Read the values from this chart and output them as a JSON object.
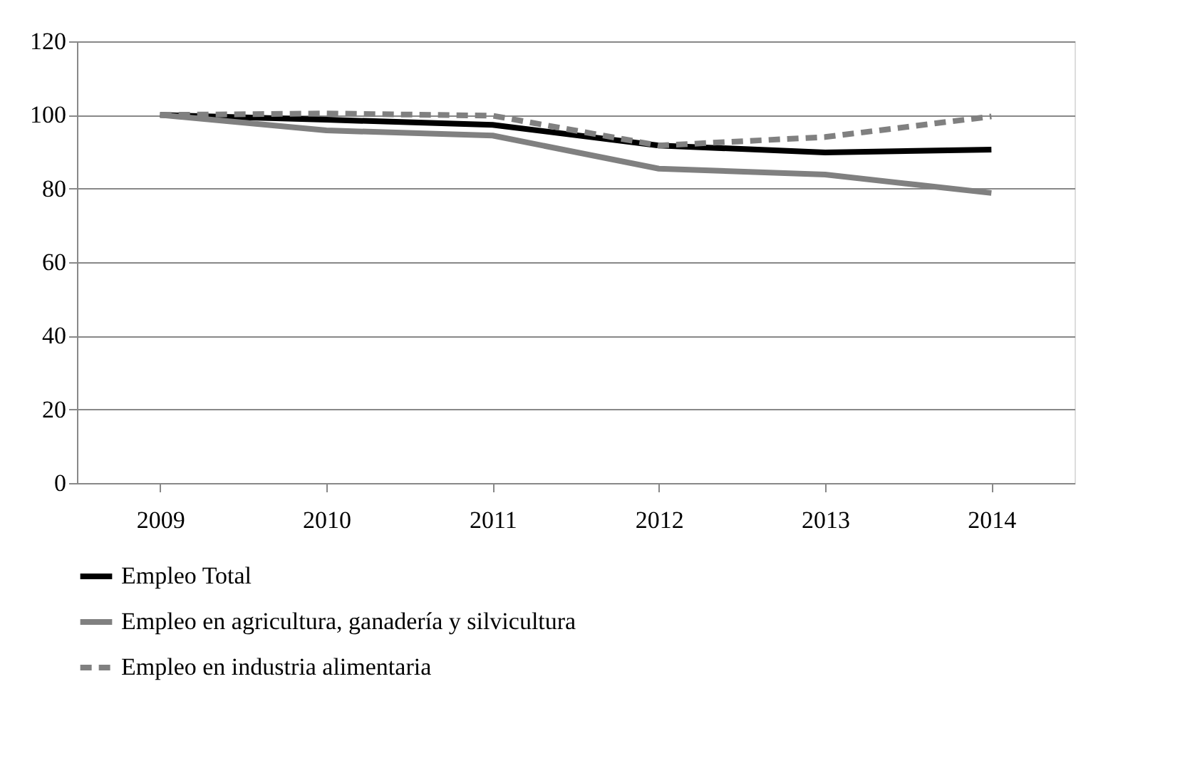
{
  "chart_data": {
    "type": "line",
    "categories": [
      "2009",
      "2010",
      "2011",
      "2012",
      "2013",
      "2014"
    ],
    "series": [
      {
        "name": "Empleo Total",
        "color": "#000000",
        "line_style": "solid",
        "values": [
          100,
          98.7,
          97.3,
          91.7,
          89.8,
          90.6
        ]
      },
      {
        "name": "Empleo en agricultura, ganadería y silvicultura",
        "color": "#808080",
        "line_style": "solid",
        "values": [
          100,
          95.8,
          94.4,
          85.4,
          83.8,
          78.8
        ]
      },
      {
        "name": "Empleo en industria alimentaria",
        "color": "#808080",
        "line_style": "dashed",
        "values": [
          100,
          100.4,
          99.8,
          91.7,
          94.0,
          99.6
        ]
      }
    ],
    "ylim": [
      0,
      120
    ],
    "yticks": [
      0,
      20,
      40,
      60,
      80,
      100,
      120
    ],
    "grid": "y",
    "legend": "bottom",
    "marker": "none"
  }
}
